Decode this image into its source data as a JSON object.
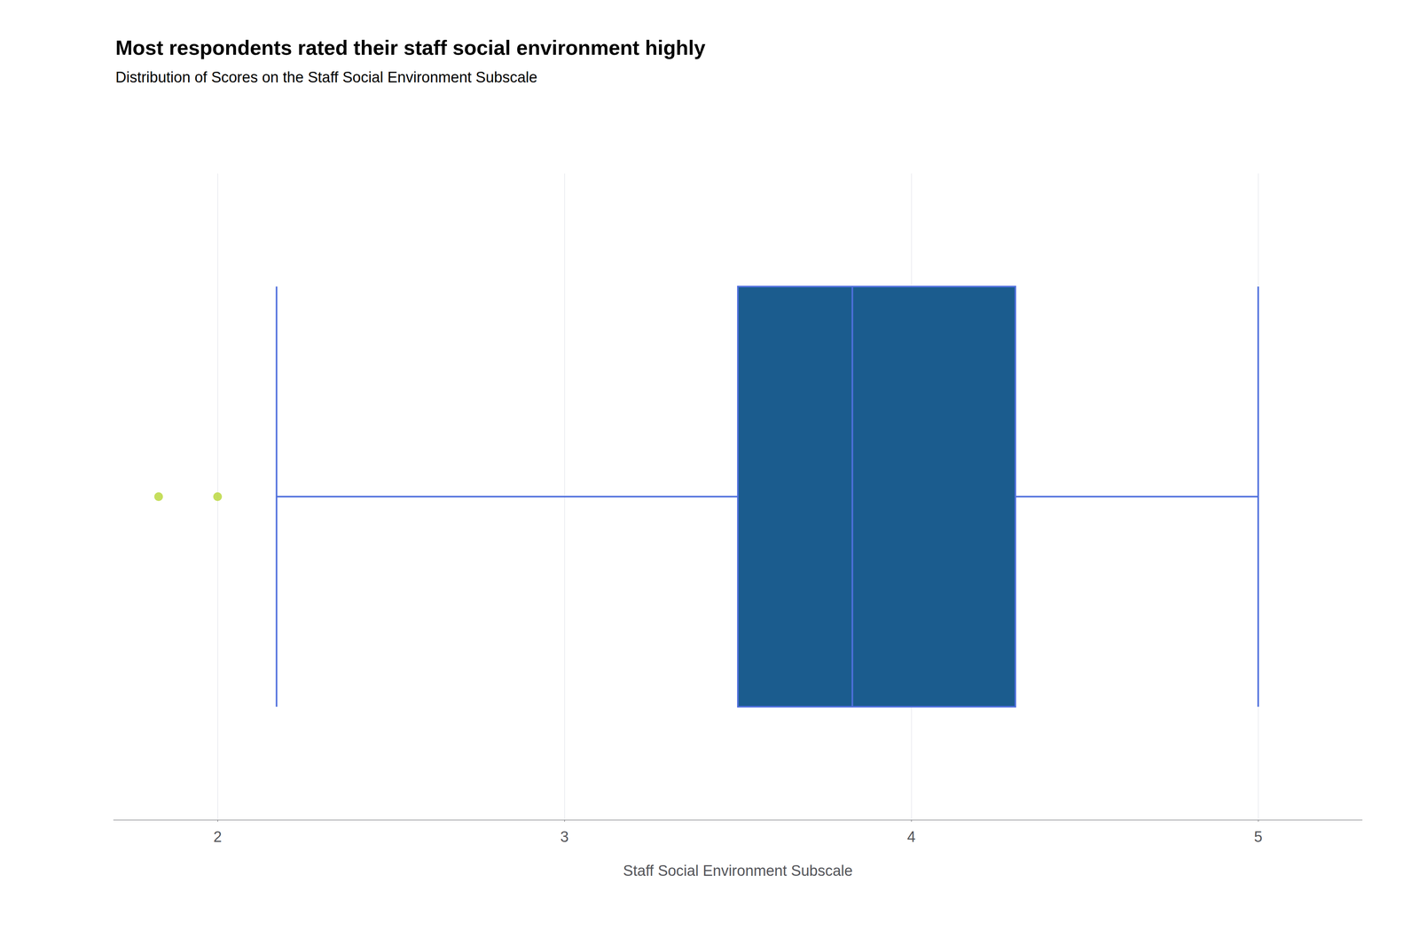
{
  "chart_data": {
    "type": "boxplot",
    "title": "Most respondents rated their staff social environment highly",
    "subtitle": "Distribution of Scores on the Staff Social Environment Subscale",
    "xlabel": "Staff Social Environment Subscale",
    "xlim": [
      1.7,
      5.3
    ],
    "xticks": [
      2,
      3,
      4,
      5
    ],
    "stats": {
      "whisker_low": 2.17,
      "q1": 3.5,
      "median": 3.83,
      "q3": 4.3,
      "whisker_high": 5.0
    },
    "outliers": [
      1.83,
      2.0
    ],
    "color": "#1B5C8E",
    "grid": true,
    "tick_labels": "x"
  }
}
